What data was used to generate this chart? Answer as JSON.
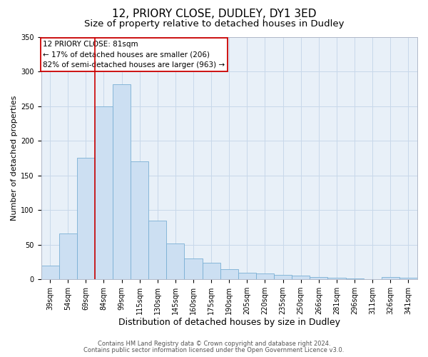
{
  "title": "12, PRIORY CLOSE, DUDLEY, DY1 3ED",
  "subtitle": "Size of property relative to detached houses in Dudley",
  "xlabel": "Distribution of detached houses by size in Dudley",
  "ylabel": "Number of detached properties",
  "bar_labels": [
    "39sqm",
    "54sqm",
    "69sqm",
    "84sqm",
    "99sqm",
    "115sqm",
    "130sqm",
    "145sqm",
    "160sqm",
    "175sqm",
    "190sqm",
    "205sqm",
    "220sqm",
    "235sqm",
    "250sqm",
    "266sqm",
    "281sqm",
    "296sqm",
    "311sqm",
    "326sqm",
    "341sqm"
  ],
  "bar_values": [
    20,
    66,
    175,
    250,
    281,
    170,
    85,
    52,
    30,
    24,
    15,
    10,
    8,
    6,
    5,
    3,
    2,
    1,
    0,
    3,
    2
  ],
  "bar_color": "#ccdff2",
  "bar_edge_color": "#7aafd4",
  "vline_x_idx": 2.5,
  "vline_color": "#cc0000",
  "annotation_box_text": "12 PRIORY CLOSE: 81sqm\n← 17% of detached houses are smaller (206)\n82% of semi-detached houses are larger (963) →",
  "annotation_box_color": "#cc0000",
  "ylim": [
    0,
    350
  ],
  "yticks": [
    0,
    50,
    100,
    150,
    200,
    250,
    300,
    350
  ],
  "grid_color": "#c8d8ea",
  "bg_color": "#e8f0f8",
  "footer1": "Contains HM Land Registry data © Crown copyright and database right 2024.",
  "footer2": "Contains public sector information licensed under the Open Government Licence v3.0.",
  "title_fontsize": 11,
  "subtitle_fontsize": 9.5,
  "xlabel_fontsize": 9,
  "ylabel_fontsize": 8,
  "tick_fontsize": 7,
  "annotation_fontsize": 7.5,
  "footer_fontsize": 6
}
